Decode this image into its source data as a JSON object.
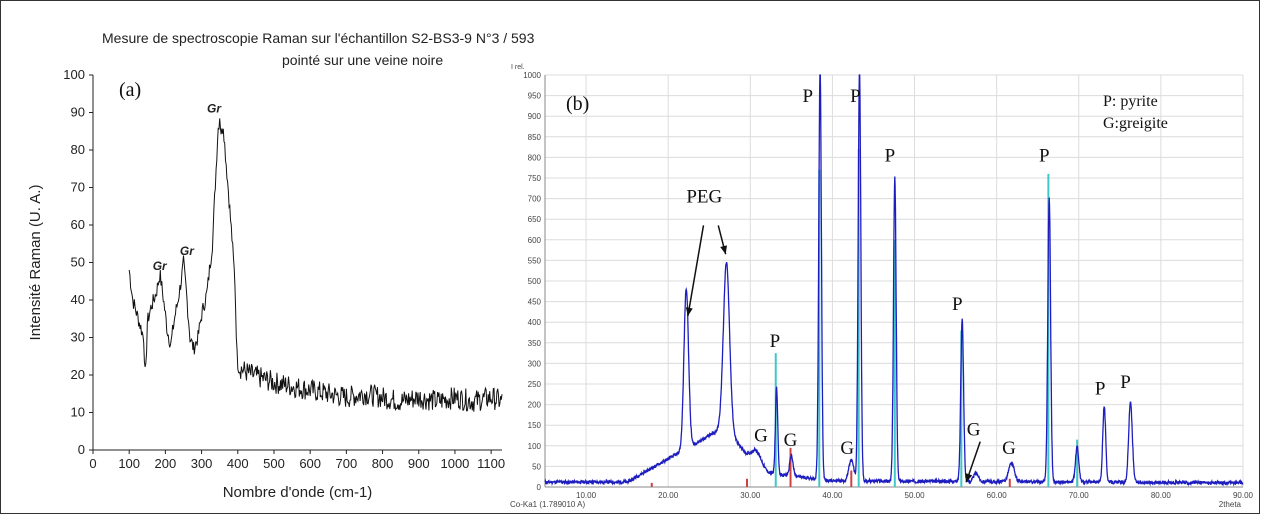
{
  "left_panel": {
    "title_line1": "Mesure de spectroscopie Raman sur l'échantillon S2-BS3-9 N°3 / 593",
    "title_line2": "pointé sur une veine noire"
  },
  "chart_data": [
    {
      "type": "line",
      "panel_label": "(a)",
      "xlabel": "Nombre d'onde (cm-1)",
      "ylabel": "Intensité Raman (U. A.)",
      "xlim": [
        0,
        1130
      ],
      "ylim": [
        0,
        100
      ],
      "x_ticks": [
        0,
        100,
        200,
        300,
        400,
        500,
        600,
        700,
        800,
        900,
        1000,
        1100
      ],
      "y_ticks": [
        0,
        10,
        20,
        30,
        40,
        50,
        60,
        70,
        80,
        90,
        100
      ],
      "grid": false,
      "line_color": "#111111",
      "series": [
        {
          "x": [
            100,
            110,
            125,
            140,
            145,
            150,
            160,
            175,
            185,
            195,
            205,
            215,
            225,
            235,
            245,
            250,
            258,
            268,
            278,
            290,
            300,
            315,
            330,
            340,
            345,
            350,
            355,
            360,
            365,
            375,
            385,
            392,
            398,
            405,
            420,
            440,
            470,
            500,
            550,
            600,
            650,
            700,
            750,
            800,
            850,
            900,
            950,
            1000,
            1050,
            1100,
            1130
          ],
          "y": [
            48,
            40,
            35,
            30,
            18,
            34,
            38,
            42,
            47,
            40,
            32,
            28,
            35,
            40,
            46,
            50,
            42,
            30,
            27,
            30,
            36,
            42,
            55,
            75,
            85,
            89,
            84,
            87,
            80,
            68,
            55,
            45,
            25,
            22,
            21,
            20,
            19,
            18,
            17,
            16,
            15,
            14,
            15,
            14,
            13,
            14,
            13,
            14,
            13,
            14,
            13
          ]
        }
      ],
      "annotations": [
        {
          "text": "Gr",
          "x": 165,
          "y": 48
        },
        {
          "text": "Gr",
          "x": 240,
          "y": 52
        },
        {
          "text": "Gr",
          "x": 315,
          "y": 90
        }
      ]
    },
    {
      "type": "line",
      "panel_label": "(b)",
      "ylabel": "I rel.",
      "xlabel": "2theta",
      "source_label": "Co-Ka1 (1.789010 A)",
      "xlim": [
        5,
        90
      ],
      "ylim": [
        0,
        1000
      ],
      "x_ticks": [
        "10.00",
        "20.00",
        "30.00",
        "40.00",
        "50.00",
        "60.00",
        "70.00",
        "80.00",
        "90.00"
      ],
      "x_tick_values": [
        10,
        20,
        30,
        40,
        50,
        60,
        70,
        80,
        90
      ],
      "y_ticks": [
        0,
        50,
        100,
        150,
        200,
        250,
        300,
        350,
        400,
        450,
        500,
        550,
        600,
        650,
        700,
        750,
        800,
        850,
        900,
        950,
        1000
      ],
      "grid": true,
      "colors": {
        "pattern": "#1e1ebe",
        "pyrite_ref": "#40c8c8",
        "greigite_ref": "#d04040",
        "grid": "#dcdcdc"
      },
      "legend": [
        "P: pyrite",
        "G:greigite"
      ],
      "pattern_peaks": [
        {
          "x": 22.2,
          "h": 390,
          "w": 0.28
        },
        {
          "x": 27.1,
          "h": 400,
          "w": 0.38
        },
        {
          "x": 30.8,
          "h": 45,
          "w": 0.6
        },
        {
          "x": 33.2,
          "h": 210,
          "w": 0.14
        },
        {
          "x": 35.0,
          "h": 50,
          "w": 0.2
        },
        {
          "x": 38.5,
          "h": 1000,
          "w": 0.16
        },
        {
          "x": 42.3,
          "h": 50,
          "w": 0.3
        },
        {
          "x": 43.3,
          "h": 1000,
          "w": 0.16
        },
        {
          "x": 47.6,
          "h": 740,
          "w": 0.16
        },
        {
          "x": 55.8,
          "h": 395,
          "w": 0.17
        },
        {
          "x": 57.5,
          "h": 20,
          "w": 0.3
        },
        {
          "x": 61.8,
          "h": 45,
          "w": 0.35
        },
        {
          "x": 66.4,
          "h": 690,
          "w": 0.17
        },
        {
          "x": 69.8,
          "h": 85,
          "w": 0.2
        },
        {
          "x": 73.1,
          "h": 185,
          "w": 0.18
        },
        {
          "x": 76.3,
          "h": 195,
          "w": 0.22
        }
      ],
      "pyrite_reference": [
        {
          "x": 33.1,
          "h": 325
        },
        {
          "x": 38.4,
          "h": 770
        },
        {
          "x": 43.2,
          "h": 820
        },
        {
          "x": 47.6,
          "h": 600
        },
        {
          "x": 55.7,
          "h": 380
        },
        {
          "x": 66.3,
          "h": 760
        },
        {
          "x": 69.8,
          "h": 115
        }
      ],
      "greigite_reference": [
        {
          "x": 18.0,
          "h": 10
        },
        {
          "x": 29.6,
          "h": 20
        },
        {
          "x": 34.9,
          "h": 95
        },
        {
          "x": 42.3,
          "h": 40
        },
        {
          "x": 61.6,
          "h": 20
        }
      ],
      "annotations": [
        {
          "text": "PEG",
          "x": 24.4,
          "y": 690
        },
        {
          "text": "P",
          "x": 33.0,
          "y": 340
        },
        {
          "text": "P",
          "x": 37.0,
          "y": 935
        },
        {
          "text": "P",
          "x": 42.8,
          "y": 935
        },
        {
          "text": "P",
          "x": 47.0,
          "y": 790
        },
        {
          "text": "P",
          "x": 55.2,
          "y": 430
        },
        {
          "text": "P",
          "x": 65.8,
          "y": 790
        },
        {
          "text": "P",
          "x": 72.6,
          "y": 225
        },
        {
          "text": "P",
          "x": 75.7,
          "y": 240
        },
        {
          "text": "G",
          "x": 31.3,
          "y": 110
        },
        {
          "text": "G",
          "x": 34.9,
          "y": 100
        },
        {
          "text": "G",
          "x": 41.8,
          "y": 80
        },
        {
          "text": "G",
          "x": 57.2,
          "y": 125
        },
        {
          "text": "G",
          "x": 61.5,
          "y": 80
        }
      ],
      "arrows": [
        {
          "from": [
            24.3,
            635
          ],
          "to": [
            22.4,
            415
          ]
        },
        {
          "from": [
            26.1,
            635
          ],
          "to": [
            27.0,
            565
          ]
        },
        {
          "from": [
            58.0,
            110
          ],
          "to": [
            56.3,
            12
          ]
        }
      ]
    }
  ]
}
